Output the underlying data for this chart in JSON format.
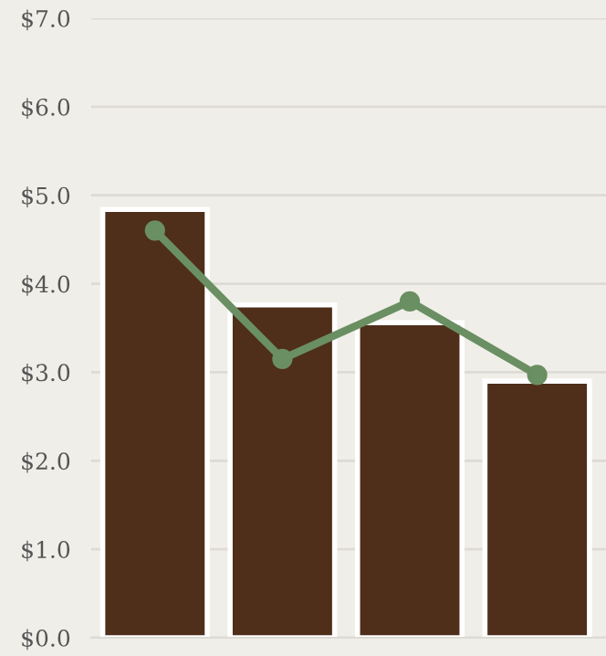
{
  "chart_data": {
    "type": "bar",
    "categories": [
      null,
      null,
      null,
      null
    ],
    "series": [
      {
        "color": "#4f2e1a",
        "values": [
          4.84,
          3.76,
          3.56,
          2.9
        ]
      },
      {
        "type": "line",
        "color": "#6a8f62",
        "values": [
          4.6,
          3.15,
          3.8,
          2.97
        ]
      }
    ],
    "ylim": [
      0,
      7
    ],
    "yticks": [
      {
        "value": 0,
        "label": "$0.0"
      },
      {
        "value": 1,
        "label": "$1.0"
      },
      {
        "value": 2,
        "label": "$2.0"
      },
      {
        "value": 3,
        "label": "$3.0"
      },
      {
        "value": 4,
        "label": "$4.0"
      },
      {
        "value": 5,
        "label": "$5.0"
      },
      {
        "value": 6,
        "label": "$6.0"
      },
      {
        "value": 7,
        "label": "$7.0"
      }
    ],
    "grid": "y",
    "marker": "circle",
    "line_style": "solid",
    "tick_labels": "y"
  }
}
